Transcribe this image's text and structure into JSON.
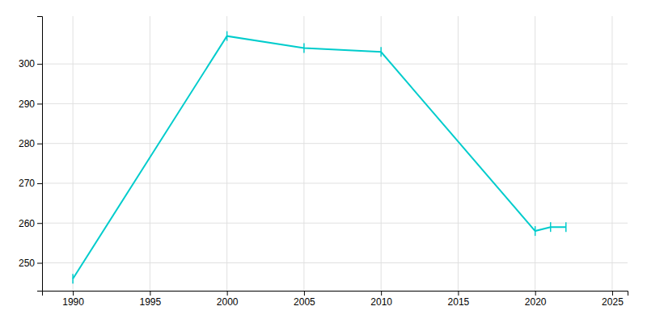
{
  "chart_data": {
    "type": "line",
    "x": [
      1990,
      2000,
      2005,
      2010,
      2020,
      2021,
      2022
    ],
    "values": [
      246,
      307,
      304,
      303,
      258,
      259,
      259
    ],
    "color": "#00CCCC",
    "marker": "vline",
    "xlim": [
      1988,
      2026
    ],
    "ylim": [
      243,
      312
    ],
    "xticks": [
      1990,
      1995,
      2000,
      2005,
      2010,
      2015,
      2020,
      2025
    ],
    "yticks": [
      250,
      260,
      270,
      280,
      290,
      300
    ],
    "grid": true
  }
}
